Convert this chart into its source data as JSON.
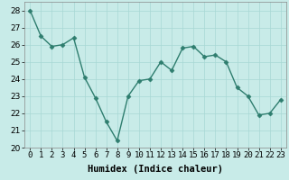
{
  "x": [
    0,
    1,
    2,
    3,
    4,
    5,
    6,
    7,
    8,
    9,
    10,
    11,
    12,
    13,
    14,
    15,
    16,
    17,
    18,
    19,
    20,
    21,
    22,
    23
  ],
  "y": [
    28.0,
    26.5,
    25.9,
    26.0,
    26.4,
    24.1,
    22.9,
    21.5,
    20.4,
    23.0,
    23.9,
    24.0,
    25.0,
    24.5,
    25.8,
    25.9,
    25.3,
    25.4,
    25.0,
    23.5,
    23.0,
    21.9,
    22.0,
    22.8
  ],
  "line_color": "#2e7d6e",
  "marker": "D",
  "marker_size": 2.5,
  "linewidth": 1.0,
  "xlabel": "Humidex (Indice chaleur)",
  "xlim": [
    -0.5,
    23.5
  ],
  "ylim": [
    20,
    28.5
  ],
  "yticks": [
    20,
    21,
    22,
    23,
    24,
    25,
    26,
    27,
    28
  ],
  "xticks": [
    0,
    1,
    2,
    3,
    4,
    5,
    6,
    7,
    8,
    9,
    10,
    11,
    12,
    13,
    14,
    15,
    16,
    17,
    18,
    19,
    20,
    21,
    22,
    23
  ],
  "xtick_labels": [
    "0",
    "1",
    "2",
    "3",
    "4",
    "5",
    "6",
    "7",
    "8",
    "9",
    "10",
    "11",
    "12",
    "13",
    "14",
    "15",
    "16",
    "17",
    "18",
    "19",
    "20",
    "21",
    "22",
    "23"
  ],
  "bg_color": "#c8ebe8",
  "grid_color": "#a8d8d4",
  "xlabel_fontsize": 7.5,
  "tick_fontsize": 6.5
}
